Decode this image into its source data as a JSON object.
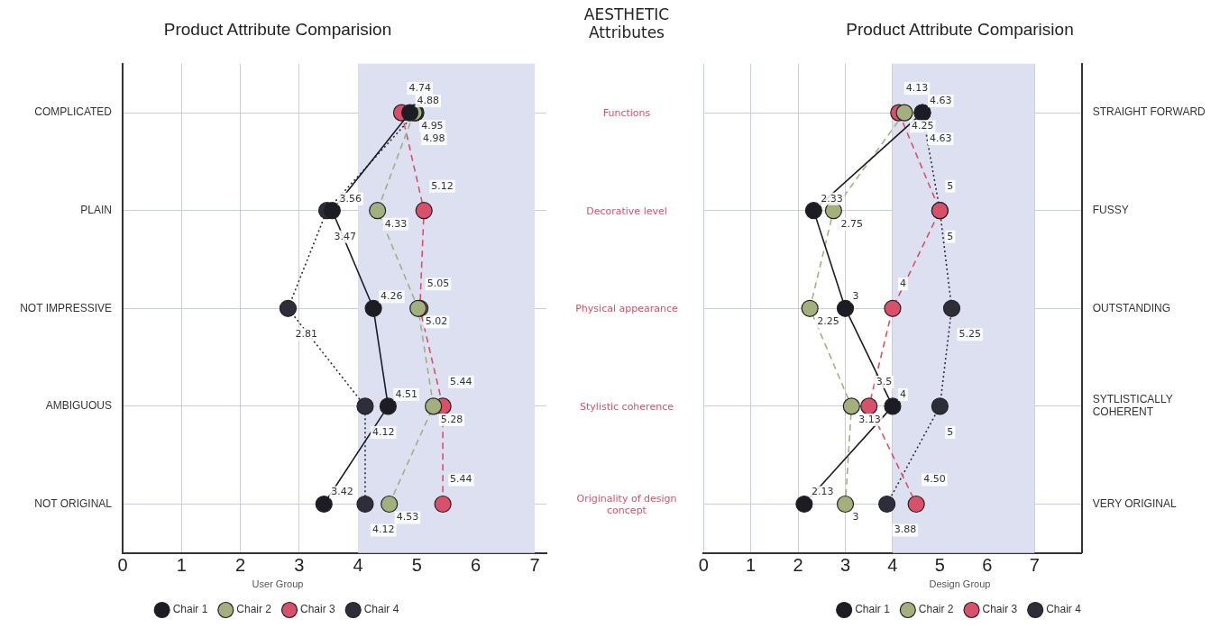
{
  "chart_data": [
    {
      "type": "line",
      "orientation": "horizontal",
      "title": "Product Attribute Comparision",
      "categories": [
        "COMPLICATED",
        "PLAIN",
        "NOT IMPRESSIVE",
        "AMBIGUOUS",
        "NOT ORIGINAL"
      ],
      "xlim": [
        0,
        7.2
      ],
      "xticks": [
        0,
        1,
        2,
        3,
        4,
        5,
        6,
        7
      ],
      "grid": true,
      "legend": "bottom",
      "legend_title": "User Group",
      "marker": "circle",
      "bands": [
        {
          "axis": "x",
          "from": 4,
          "to": 7,
          "color": "#dde0f0"
        }
      ],
      "series": [
        {
          "name": "Chair 1",
          "color": "#1c1c24",
          "line_style": "solid",
          "values": [
            4.88,
            3.56,
            4.26,
            4.51,
            3.42
          ],
          "value_labels": [
            "4.88",
            "3.56",
            "4.26",
            "4.51",
            "3.42"
          ]
        },
        {
          "name": "Chair 2",
          "color": "#a3b07e",
          "line_style": "dashed",
          "values": [
            4.95,
            4.33,
            5.02,
            5.28,
            4.53
          ],
          "value_labels": [
            "4.95",
            "4.33",
            "5.02",
            "5.28",
            "4.53"
          ]
        },
        {
          "name": "Chair 3",
          "color": "#d9506a",
          "line_style": "dashed",
          "values": [
            4.74,
            5.12,
            5.05,
            5.44,
            5.44
          ],
          "value_labels": [
            "4.74",
            "5.12",
            "5.05",
            "5.44",
            "5.44"
          ]
        },
        {
          "name": "Chair 4",
          "color": "#2e2e3a",
          "line_style": "dotted",
          "values": [
            4.98,
            3.47,
            2.81,
            4.12,
            4.12
          ],
          "value_labels": [
            "4.98",
            "3.47",
            "2.81",
            "4.12",
            "4.12"
          ]
        }
      ]
    },
    {
      "type": "other",
      "title": "AESTHETIC Attributes",
      "annotations": [
        "Functions",
        "Decorative level",
        "Physical appearance",
        "Stylistic coherence",
        "Originality of design concept"
      ]
    },
    {
      "type": "line",
      "orientation": "horizontal",
      "title": "Product Attribute Comparision",
      "categories": [
        "STRAIGHT FORWARD",
        "FUSSY",
        "OUTSTANDING",
        "SYTLISTICALLY COHERENT",
        "VERY ORIGINAL"
      ],
      "xlim": [
        0,
        8
      ],
      "xticks": [
        0,
        1,
        2,
        3,
        4,
        5,
        6,
        7
      ],
      "grid": true,
      "legend": "bottom",
      "legend_title": "Design Group",
      "marker": "circle",
      "bands": [
        {
          "axis": "x",
          "from": 4,
          "to": 7,
          "color": "#dde0f0"
        }
      ],
      "series": [
        {
          "name": "Chair 1",
          "color": "#1c1c24",
          "line_style": "solid",
          "values": [
            4.63,
            2.33,
            3,
            4,
            2.13
          ],
          "value_labels": [
            "4.63",
            "2.33",
            "3",
            "4",
            "2.13"
          ]
        },
        {
          "name": "Chair 2",
          "color": "#a3b07e",
          "line_style": "dashed",
          "values": [
            4.25,
            2.75,
            2.25,
            3.13,
            3
          ],
          "value_labels": [
            "4.25",
            "2.75",
            "2.25",
            "3.13",
            "3"
          ]
        },
        {
          "name": "Chair 3",
          "color": "#d9506a",
          "line_style": "dashed",
          "values": [
            4.13,
            5,
            4,
            3.5,
            4.5
          ],
          "value_labels": [
            "4.13",
            "5",
            "4",
            "3.5",
            "4.50"
          ]
        },
        {
          "name": "Chair 4",
          "color": "#2e2e3a",
          "line_style": "dotted",
          "values": [
            4.63,
            5,
            5.25,
            5,
            3.88
          ],
          "value_labels": [
            "4.63",
            "5",
            "5.25",
            "5",
            "3.88"
          ]
        }
      ]
    }
  ]
}
